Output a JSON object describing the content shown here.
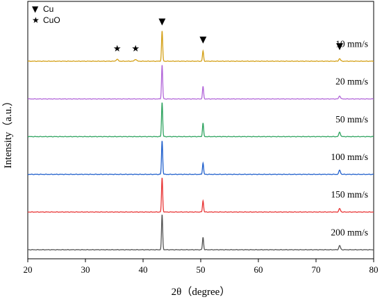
{
  "chart_data": {
    "type": "line",
    "title": "",
    "xlabel": "2θ（degree）",
    "ylabel": "Intensity（a.u.）",
    "xlim": [
      20,
      80
    ],
    "xticks": [
      20,
      30,
      40,
      50,
      60,
      70,
      80
    ],
    "ylim": [
      0,
      6
    ],
    "grid": false,
    "y_tick_labels": false,
    "legend": {
      "placement": "top-left",
      "entries": [
        {
          "symbol": "▼",
          "label": "Cu"
        },
        {
          "symbol": "★",
          "label": "CuO"
        }
      ]
    },
    "series": [
      {
        "name": "10 mm/s",
        "color": "#D4A017",
        "offset": 5,
        "peaks": [
          {
            "x": 35.5,
            "h": 0.05,
            "w": 0.25
          },
          {
            "x": 38.7,
            "h": 0.05,
            "w": 0.25
          },
          {
            "x": 43.3,
            "h": 0.8,
            "w": 0.14
          },
          {
            "x": 50.4,
            "h": 0.27,
            "w": 0.14
          },
          {
            "x": 74.1,
            "h": 0.07,
            "w": 0.2
          }
        ]
      },
      {
        "name": "20 mm/s",
        "color": "#B266D9",
        "offset": 4,
        "peaks": [
          {
            "x": 43.3,
            "h": 0.9,
            "w": 0.14
          },
          {
            "x": 50.4,
            "h": 0.33,
            "w": 0.14
          },
          {
            "x": 74.1,
            "h": 0.08,
            "w": 0.2
          }
        ]
      },
      {
        "name": "50 mm/s",
        "color": "#2EA35F",
        "offset": 3,
        "peaks": [
          {
            "x": 43.3,
            "h": 0.91,
            "w": 0.14
          },
          {
            "x": 50.4,
            "h": 0.36,
            "w": 0.14
          },
          {
            "x": 74.1,
            "h": 0.12,
            "w": 0.2
          }
        ]
      },
      {
        "name": "100 mm/s",
        "color": "#1F5FCC",
        "offset": 2,
        "peaks": [
          {
            "x": 43.3,
            "h": 0.89,
            "w": 0.14
          },
          {
            "x": 50.4,
            "h": 0.3,
            "w": 0.14
          },
          {
            "x": 74.1,
            "h": 0.11,
            "w": 0.2
          }
        ]
      },
      {
        "name": "150 mm/s",
        "color": "#E83535",
        "offset": 1,
        "peaks": [
          {
            "x": 43.3,
            "h": 0.91,
            "w": 0.14
          },
          {
            "x": 50.4,
            "h": 0.3,
            "w": 0.14
          },
          {
            "x": 74.1,
            "h": 0.09,
            "w": 0.2
          }
        ]
      },
      {
        "name": "200 mm/s",
        "color": "#555555",
        "offset": 0,
        "peaks": [
          {
            "x": 43.3,
            "h": 0.93,
            "w": 0.14
          },
          {
            "x": 50.4,
            "h": 0.33,
            "w": 0.14
          },
          {
            "x": 74.1,
            "h": 0.11,
            "w": 0.2
          }
        ]
      }
    ],
    "annotations": [
      {
        "symbol": "▼",
        "x": 43.3,
        "y": 5.98
      },
      {
        "symbol": "▼",
        "x": 50.4,
        "y": 5.5
      },
      {
        "symbol": "▼",
        "x": 74.1,
        "y": 5.32
      },
      {
        "symbol": "★",
        "x": 35.5,
        "y": 5.26
      },
      {
        "symbol": "★",
        "x": 38.7,
        "y": 5.26
      }
    ]
  }
}
